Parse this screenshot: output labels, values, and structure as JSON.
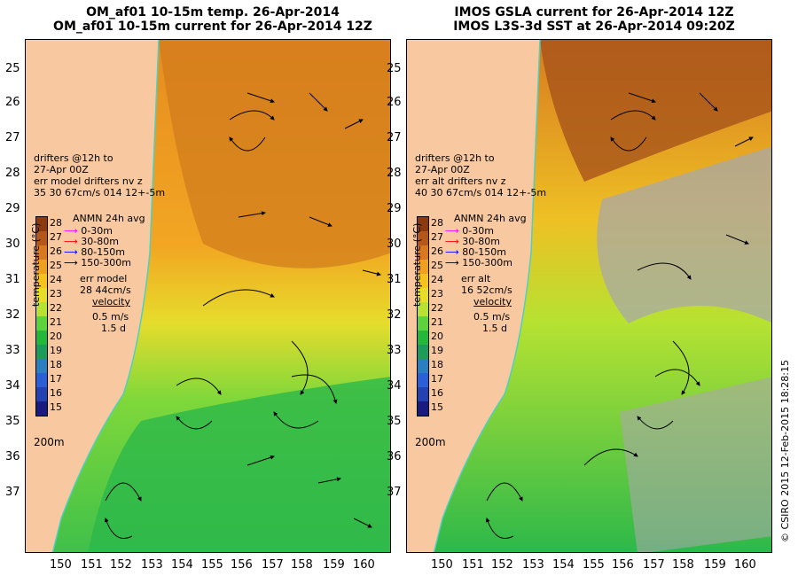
{
  "left_panel": {
    "title1": "OM_af01 10-15m temp. 26-Apr-2014",
    "title2": "OM_af01 10-15m current for 26-Apr-2014 12Z",
    "drifters_line1": "drifters @12h to",
    "drifters_line2": "27-Apr 00Z",
    "err_header": "err model drifters nv z",
    "err_values": "35   30    67cm/s 014 12+-5m",
    "err_label": "err model",
    "err_value": "28 44cm/s",
    "velocity": "velocity",
    "scale_speed": "0.5 m/s",
    "scale_time": "1.5 d"
  },
  "right_panel": {
    "title1": "IMOS GSLA current for 26-Apr-2014 12Z",
    "title2": "IMOS L3S-3d SST at 26-Apr-2014 09:20Z",
    "drifters_line1": "drifters @12h to",
    "drifters_line2": "27-Apr 00Z",
    "err_header": "err alt drifters nv z",
    "err_values": "40 30 67cm/s 014 12+-5m",
    "err_label": "err alt",
    "err_value": "16 52cm/s",
    "velocity": "velocity",
    "scale_speed": "0.5 m/s",
    "scale_time": "1.5 d"
  },
  "legend": {
    "title": "ANMN 24h avg",
    "items": [
      {
        "label": "0-30m",
        "color": "#ff00ff"
      },
      {
        "label": "30-80m",
        "color": "#ff0000"
      },
      {
        "label": "80-150m",
        "color": "#0000ff"
      },
      {
        "label": "150-300m",
        "color": "#000000"
      }
    ]
  },
  "colorbar": {
    "label": "temperature (°C)",
    "ticks": [
      "28",
      "27",
      "26",
      "25",
      "24",
      "23",
      "22",
      "21",
      "20",
      "19",
      "18",
      "17",
      "16",
      "15"
    ],
    "colors": [
      "#8b3a0f",
      "#b5561a",
      "#d8791f",
      "#f0a020",
      "#f6c21e",
      "#e8dc2a",
      "#b6e232",
      "#5cd23c",
      "#23b83a",
      "#1c9b5a",
      "#2a7fc0",
      "#2b5fd8",
      "#2540b0",
      "#1a1a80"
    ]
  },
  "depth_label": "200m",
  "lat_ticks": [
    "25",
    "26",
    "27",
    "28",
    "29",
    "30",
    "31",
    "32",
    "33",
    "34",
    "35",
    "36",
    "37"
  ],
  "lon_ticks": [
    "150",
    "151",
    "152",
    "153",
    "154",
    "155",
    "156",
    "157",
    "158",
    "159",
    "160"
  ],
  "copyright": "© CSIRO 2015   12-Feb-2015 18:28:15",
  "colors": {
    "land": "#f8c9a0",
    "coast": "#4fd0c0",
    "ocean_gray": "#a8a8a8"
  }
}
